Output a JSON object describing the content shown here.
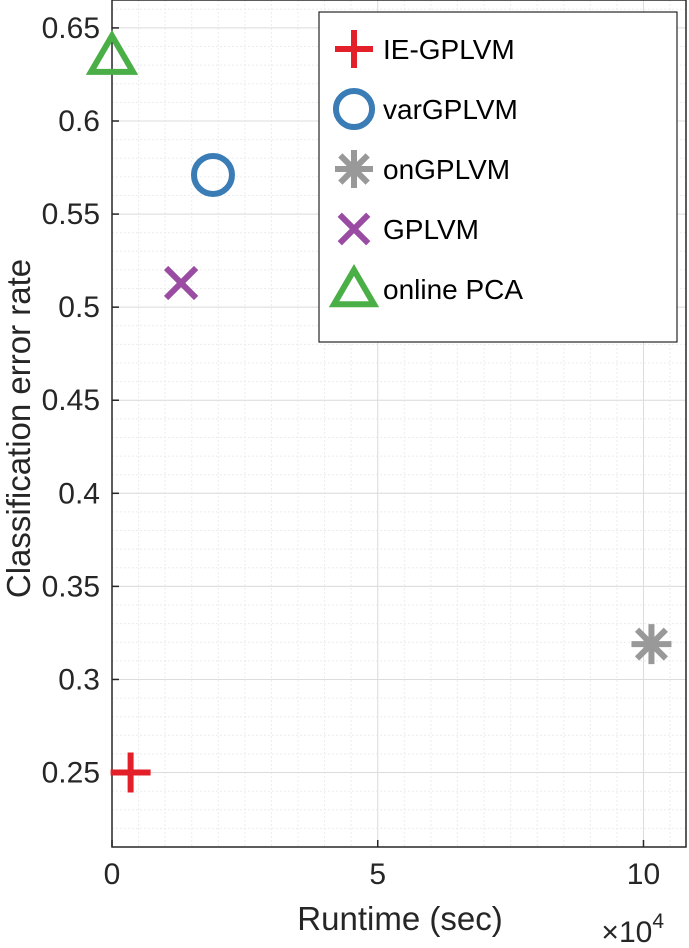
{
  "chart_data": {
    "type": "scatter",
    "xlabel": "Runtime (sec)",
    "ylabel": "Classification error rate",
    "x_exponent_label": {
      "times": "×10",
      "exp": "4"
    },
    "xlim": [
      0,
      10.8
    ],
    "ylim": [
      0.21,
      0.665
    ],
    "x_ticks": [
      0,
      5,
      10
    ],
    "x_tick_labels": [
      "0",
      "5",
      "10"
    ],
    "y_ticks": [
      0.25,
      0.3,
      0.35,
      0.4,
      0.45,
      0.5,
      0.55,
      0.6,
      0.65
    ],
    "y_tick_labels": [
      "0.25",
      "0.3",
      "0.35",
      "0.4",
      "0.45",
      "0.5",
      "0.55",
      "0.6",
      "0.65"
    ],
    "grid": true,
    "minor_grid": true,
    "legend_position": "top-right",
    "series": [
      {
        "name": "IE-GPLVM",
        "marker": "plus",
        "color": "#e3202a",
        "x": [
          0.35
        ],
        "y": [
          0.25
        ]
      },
      {
        "name": "varGPLVM",
        "marker": "circle",
        "color": "#3a7cb6",
        "x": [
          1.9
        ],
        "y": [
          0.571
        ]
      },
      {
        "name": "onGPLVM",
        "marker": "asterisk",
        "color": "#999999",
        "x": [
          10.15
        ],
        "y": [
          0.319
        ]
      },
      {
        "name": "GPLVM",
        "marker": "x",
        "color": "#9a4ca3",
        "x": [
          1.3
        ],
        "y": [
          0.513
        ]
      },
      {
        "name": "online PCA",
        "marker": "triangle",
        "color": "#4aaf46",
        "x": [
          0.0
        ],
        "y": [
          0.635
        ]
      }
    ]
  }
}
